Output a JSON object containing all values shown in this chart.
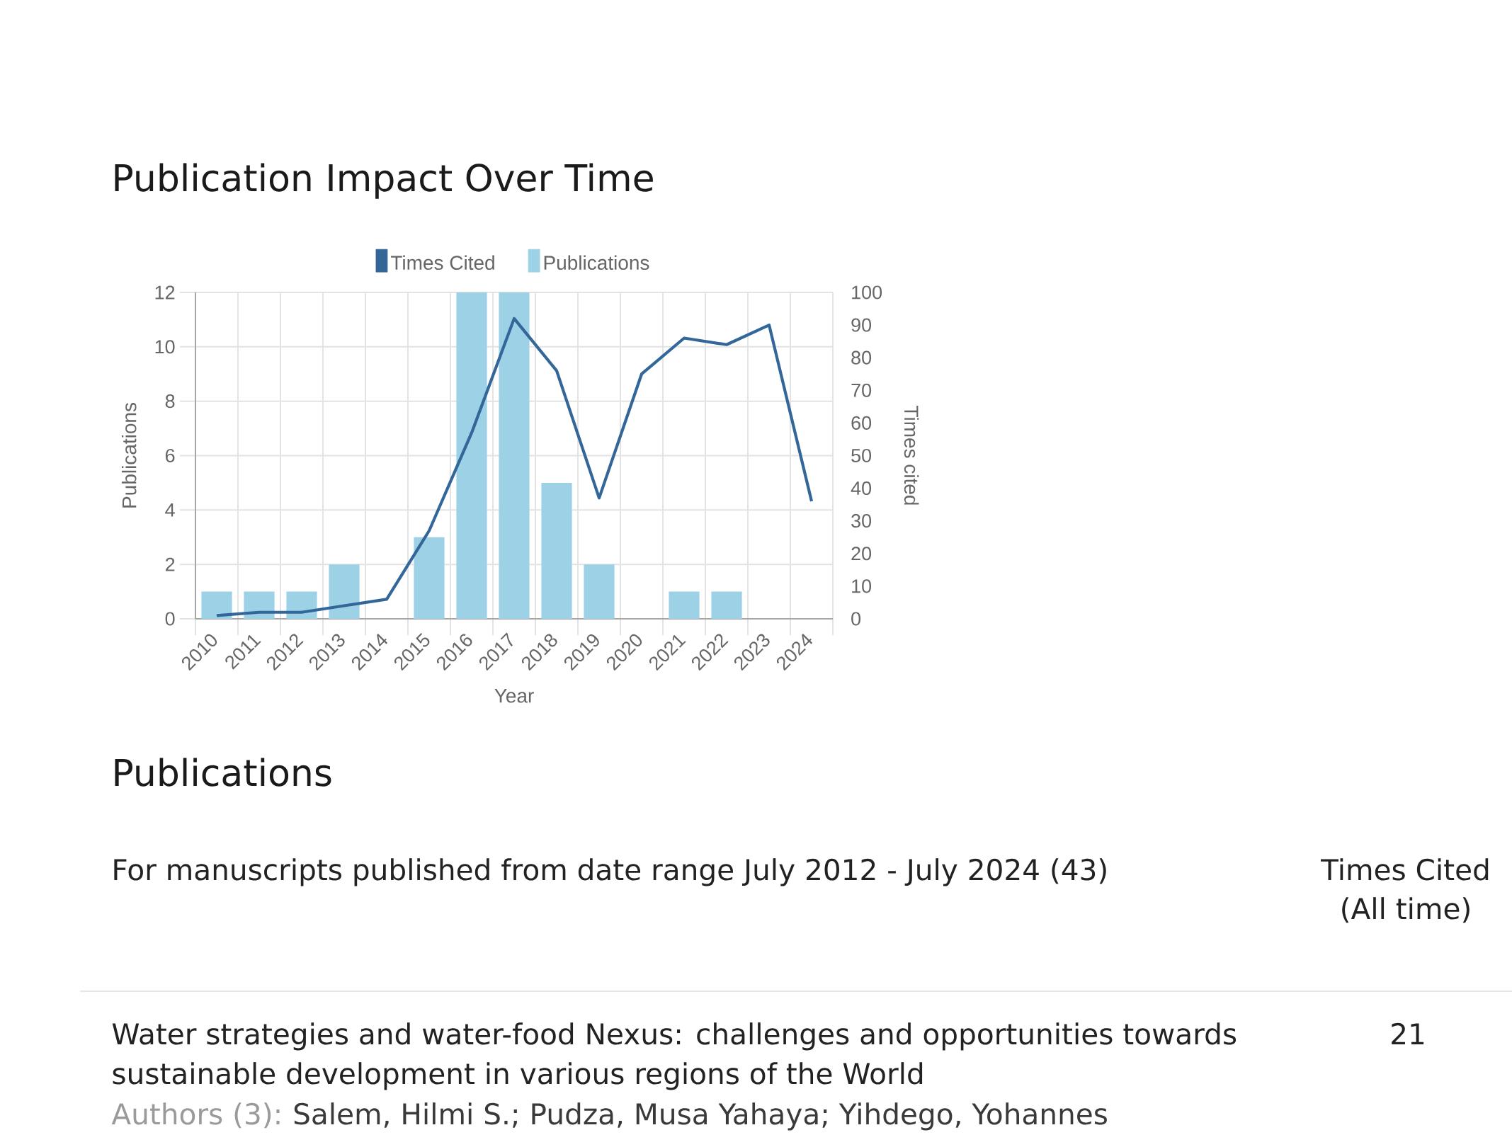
{
  "chart_data": {
    "type": "bar",
    "title": "Publication Impact Over Time",
    "xlabel": "Year",
    "ylabel": "Publications",
    "y2label": "Times cited",
    "categories": [
      "2010",
      "2011",
      "2012",
      "2013",
      "2014",
      "2015",
      "2016",
      "2017",
      "2018",
      "2019",
      "2020",
      "2021",
      "2022",
      "2023",
      "2024"
    ],
    "series": [
      {
        "name": "Times Cited",
        "type": "line",
        "axis": "y2",
        "color": "#336699",
        "values": [
          1,
          2,
          2,
          4,
          6,
          27,
          57,
          92,
          76,
          37,
          75,
          86,
          84,
          90,
          36
        ]
      },
      {
        "name": "Publications",
        "color": "#9dd2e6",
        "values": [
          1,
          1,
          1,
          2,
          0,
          3,
          12,
          12,
          5,
          2,
          0,
          1,
          1,
          0,
          0
        ]
      }
    ],
    "ylim": [
      0,
      12
    ],
    "yticks": [
      0,
      2,
      4,
      6,
      8,
      10,
      12
    ],
    "y2lim": [
      0,
      100
    ],
    "y2ticks": [
      0,
      10,
      20,
      30,
      40,
      50,
      60,
      70,
      80,
      90,
      100
    ],
    "grid": true,
    "legend": "top",
    "annotations": [
      "Publications",
      "For manuscripts published from date range July 2012 - July 2024 (43)",
      "Times Cited (All time)",
      "Water strategies and water-food Nexus: challenges and opportunities towards sustainable development in various regions of the World",
      "21",
      "Authors (3):",
      "Salem, Hilmi S.; Pudza, Musa Yahaya; Yihdego, Yohannes"
    ]
  }
}
